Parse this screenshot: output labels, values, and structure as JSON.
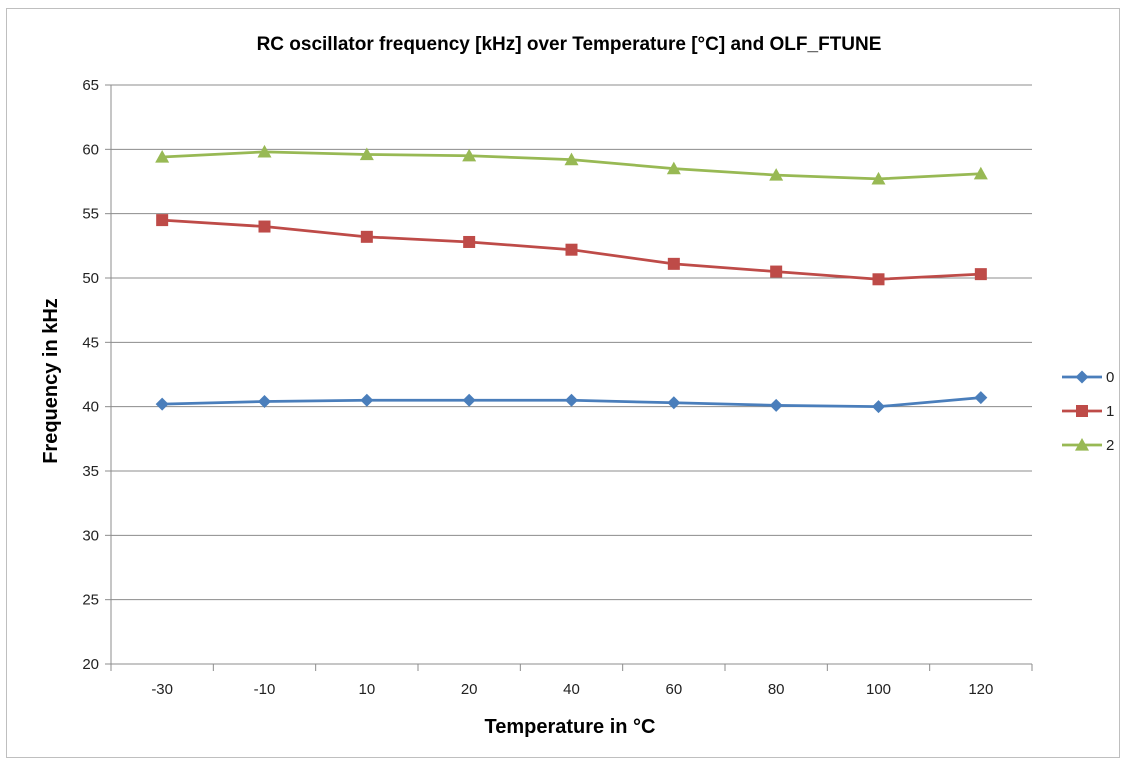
{
  "chart_data": {
    "type": "line",
    "title": "RC oscillator frequency [kHz] over Temperature [°C] and OLF_FTUNE",
    "xlabel": "Temperature in °C",
    "ylabel": "Frequency in kHz",
    "categories": [
      "-30",
      "-10",
      "10",
      "20",
      "40",
      "60",
      "80",
      "100",
      "120"
    ],
    "ylim": [
      20,
      65
    ],
    "yticks": [
      "20",
      "25",
      "30",
      "35",
      "40",
      "45",
      "50",
      "55",
      "60",
      "65"
    ],
    "grid": "horizontal",
    "legend_position": "right",
    "series": [
      {
        "name": "0",
        "color": "#4a7ebb",
        "marker": "diamond",
        "values": [
          40.2,
          40.4,
          40.5,
          40.5,
          40.5,
          40.3,
          40.1,
          40.0,
          40.7
        ]
      },
      {
        "name": "1",
        "color": "#be4b48",
        "marker": "square",
        "values": [
          54.5,
          54.0,
          53.2,
          52.8,
          52.2,
          51.1,
          50.5,
          49.9,
          50.3
        ]
      },
      {
        "name": "2",
        "color": "#98b954",
        "marker": "triangle",
        "values": [
          59.4,
          59.8,
          59.6,
          59.5,
          59.2,
          58.5,
          58.0,
          57.7,
          58.1
        ]
      }
    ]
  }
}
